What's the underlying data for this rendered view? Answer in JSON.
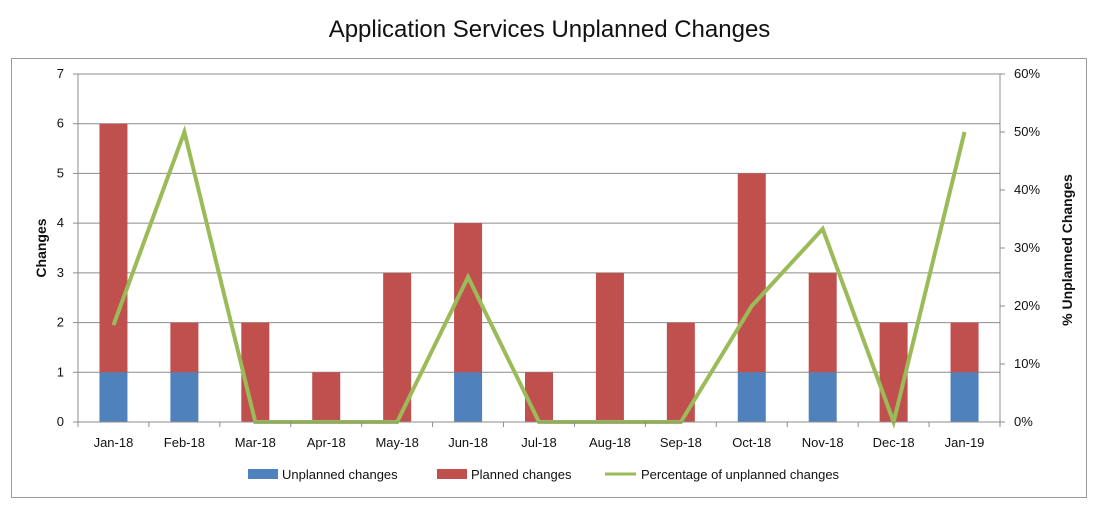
{
  "chart_data": {
    "type": "bar",
    "title": "Application Services Unplanned Changes",
    "categories": [
      "Jan-18",
      "Feb-18",
      "Mar-18",
      "Apr-18",
      "May-18",
      "Jun-18",
      "Jul-18",
      "Aug-18",
      "Sep-18",
      "Oct-18",
      "Nov-18",
      "Dec-18",
      "Jan-19"
    ],
    "series": [
      {
        "name": "Unplanned changes",
        "kind": "bar",
        "color": "#4f81bd",
        "values": [
          1,
          1,
          0,
          0,
          0,
          1,
          0,
          0,
          0,
          1,
          1,
          0,
          1
        ]
      },
      {
        "name": "Planned changes",
        "kind": "bar",
        "color": "#c0504d",
        "values": [
          5,
          1,
          2,
          1,
          3,
          3,
          1,
          3,
          2,
          4,
          2,
          2,
          1
        ]
      },
      {
        "name": "Percentage of unplanned changes",
        "kind": "line",
        "axis": "right",
        "color": "#9bbb59",
        "values": [
          16.7,
          50,
          0,
          0,
          0,
          25,
          0,
          0,
          0,
          20,
          33.3,
          0,
          50
        ]
      }
    ],
    "stacked": true,
    "ylabel": "Changes",
    "ylim": [
      0,
      7
    ],
    "yticks": [
      "0",
      "1",
      "2",
      "3",
      "4",
      "5",
      "6",
      "7"
    ],
    "y2label": "% Unplanned Changes",
    "y2lim": [
      0,
      60
    ],
    "y2ticks": [
      "0%",
      "10%",
      "20%",
      "30%",
      "40%",
      "50%",
      "60%"
    ],
    "grid": true,
    "legend_position": "bottom"
  }
}
